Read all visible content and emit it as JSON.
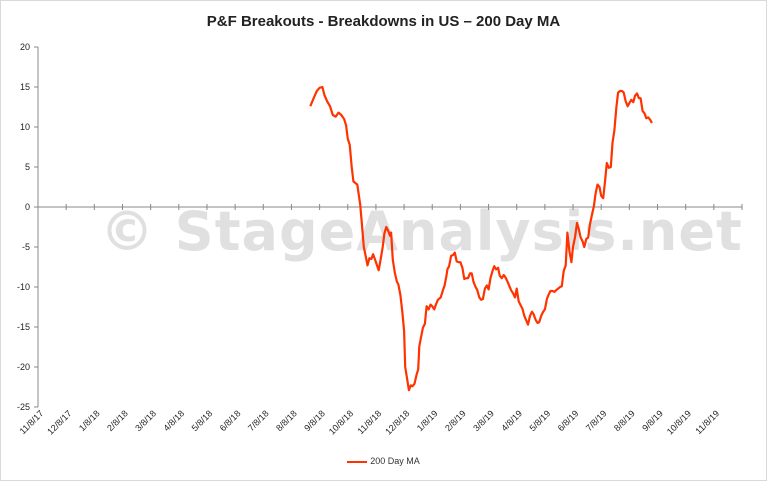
{
  "chart_data": {
    "type": "line",
    "title": "P&F Breakouts - Breakdowns in US – 200 Day MA",
    "watermark": "© StageAnalysis.net",
    "color": "#ff3300",
    "ylim": [
      -25,
      20
    ],
    "yticks": [
      20,
      15,
      10,
      5,
      0,
      -5,
      -10,
      -15,
      -20,
      -25
    ],
    "grid": false,
    "legend_position": "bottom",
    "x_tick_labels": [
      "11/8/17",
      "12/8/17",
      "1/8/18",
      "2/8/18",
      "3/8/18",
      "4/8/18",
      "5/8/18",
      "6/8/18",
      "7/8/18",
      "8/8/18",
      "9/8/18",
      "10/8/18",
      "11/8/18",
      "12/8/18",
      "1/8/19",
      "2/8/19",
      "3/8/19",
      "4/8/19",
      "5/8/19",
      "6/8/19",
      "7/8/19",
      "8/8/19",
      "9/8/19",
      "10/8/19",
      "11/8/19"
    ],
    "x_unit": "months since 11/8/17",
    "series": [
      {
        "name": "200 Day MA",
        "points": [
          [
            9.67,
            12.6
          ],
          [
            9.8,
            13.7
          ],
          [
            9.9,
            14.5
          ],
          [
            10.0,
            14.9
          ],
          [
            10.1,
            15.0
          ],
          [
            10.17,
            14.0
          ],
          [
            10.27,
            13.2
          ],
          [
            10.37,
            12.6
          ],
          [
            10.47,
            11.5
          ],
          [
            10.57,
            11.3
          ],
          [
            10.67,
            11.8
          ],
          [
            10.77,
            11.5
          ],
          [
            10.87,
            11.0
          ],
          [
            10.94,
            10.2
          ],
          [
            11.0,
            8.5
          ],
          [
            11.07,
            7.8
          ],
          [
            11.14,
            5.0
          ],
          [
            11.2,
            3.2
          ],
          [
            11.34,
            2.8
          ],
          [
            11.44,
            0.3
          ],
          [
            11.5,
            -2.0
          ],
          [
            11.57,
            -5.0
          ],
          [
            11.64,
            -6.2
          ],
          [
            11.7,
            -7.3
          ],
          [
            11.77,
            -6.4
          ],
          [
            11.84,
            -6.5
          ],
          [
            11.9,
            -5.9
          ],
          [
            11.97,
            -6.6
          ],
          [
            12.04,
            -7.3
          ],
          [
            12.1,
            -7.9
          ],
          [
            12.17,
            -6.5
          ],
          [
            12.24,
            -5.0
          ],
          [
            12.3,
            -3.3
          ],
          [
            12.37,
            -2.5
          ],
          [
            12.44,
            -3.0
          ],
          [
            12.5,
            -3.6
          ],
          [
            12.54,
            -3.2
          ],
          [
            12.6,
            -6.6
          ],
          [
            12.67,
            -8.2
          ],
          [
            12.74,
            -9.3
          ],
          [
            12.8,
            -9.7
          ],
          [
            12.87,
            -11.0
          ],
          [
            12.94,
            -13.2
          ],
          [
            13.0,
            -15.5
          ],
          [
            13.04,
            -20.0
          ],
          [
            13.1,
            -21.3
          ],
          [
            13.17,
            -22.9
          ],
          [
            13.24,
            -22.3
          ],
          [
            13.3,
            -22.4
          ],
          [
            13.37,
            -22.1
          ],
          [
            13.44,
            -21.0
          ],
          [
            13.5,
            -20.3
          ],
          [
            13.54,
            -17.4
          ],
          [
            13.6,
            -16.3
          ],
          [
            13.67,
            -15.1
          ],
          [
            13.74,
            -14.6
          ],
          [
            13.8,
            -12.4
          ],
          [
            13.87,
            -12.8
          ],
          [
            13.94,
            -12.2
          ],
          [
            14.0,
            -12.4
          ],
          [
            14.07,
            -12.8
          ],
          [
            14.14,
            -12.1
          ],
          [
            14.2,
            -11.6
          ],
          [
            14.3,
            -11.3
          ],
          [
            14.37,
            -10.5
          ],
          [
            14.44,
            -9.8
          ],
          [
            14.5,
            -8.7
          ],
          [
            14.54,
            -7.8
          ],
          [
            14.6,
            -7.4
          ],
          [
            14.67,
            -6.1
          ],
          [
            14.74,
            -6.0
          ],
          [
            14.8,
            -5.7
          ],
          [
            14.87,
            -6.8
          ],
          [
            14.94,
            -6.9
          ],
          [
            15.0,
            -6.9
          ],
          [
            15.07,
            -7.6
          ],
          [
            15.14,
            -9.0
          ],
          [
            15.2,
            -8.9
          ],
          [
            15.27,
            -8.9
          ],
          [
            15.34,
            -8.3
          ],
          [
            15.4,
            -8.3
          ],
          [
            15.47,
            -9.4
          ],
          [
            15.54,
            -10.0
          ],
          [
            15.6,
            -10.4
          ],
          [
            15.67,
            -11.3
          ],
          [
            15.74,
            -11.6
          ],
          [
            15.8,
            -11.5
          ],
          [
            15.87,
            -10.2
          ],
          [
            15.94,
            -9.8
          ],
          [
            16.0,
            -10.3
          ],
          [
            16.07,
            -8.9
          ],
          [
            16.14,
            -8.0
          ],
          [
            16.2,
            -7.4
          ],
          [
            16.27,
            -7.8
          ],
          [
            16.34,
            -7.6
          ],
          [
            16.4,
            -8.6
          ],
          [
            16.47,
            -8.9
          ],
          [
            16.54,
            -8.5
          ],
          [
            16.6,
            -8.8
          ],
          [
            16.67,
            -9.3
          ],
          [
            16.74,
            -9.9
          ],
          [
            16.8,
            -10.4
          ],
          [
            16.87,
            -10.8
          ],
          [
            16.94,
            -11.3
          ],
          [
            17.0,
            -10.2
          ],
          [
            17.07,
            -11.8
          ],
          [
            17.14,
            -12.3
          ],
          [
            17.2,
            -12.7
          ],
          [
            17.27,
            -13.6
          ],
          [
            17.34,
            -14.2
          ],
          [
            17.4,
            -14.7
          ],
          [
            17.47,
            -13.6
          ],
          [
            17.54,
            -13.1
          ],
          [
            17.6,
            -13.4
          ],
          [
            17.67,
            -14.1
          ],
          [
            17.74,
            -14.5
          ],
          [
            17.8,
            -14.4
          ],
          [
            17.87,
            -13.6
          ],
          [
            17.94,
            -13.1
          ],
          [
            18.0,
            -12.8
          ],
          [
            18.07,
            -11.5
          ],
          [
            18.14,
            -10.9
          ],
          [
            18.2,
            -10.5
          ],
          [
            18.27,
            -10.5
          ],
          [
            18.34,
            -10.6
          ],
          [
            18.4,
            -10.4
          ],
          [
            18.47,
            -10.2
          ],
          [
            18.54,
            -10.0
          ],
          [
            18.6,
            -9.9
          ],
          [
            18.67,
            -8.0
          ],
          [
            18.74,
            -7.3
          ],
          [
            18.8,
            -3.2
          ],
          [
            18.87,
            -5.5
          ],
          [
            18.94,
            -6.9
          ],
          [
            19.0,
            -5.0
          ],
          [
            19.07,
            -3.8
          ],
          [
            19.14,
            -2.0
          ],
          [
            19.2,
            -2.7
          ],
          [
            19.27,
            -3.8
          ],
          [
            19.34,
            -4.3
          ],
          [
            19.4,
            -5.0
          ],
          [
            19.47,
            -4.0
          ],
          [
            19.54,
            -3.8
          ],
          [
            19.6,
            -2.2
          ],
          [
            19.67,
            -1.0
          ],
          [
            19.74,
            0.1
          ],
          [
            19.8,
            1.7
          ],
          [
            19.87,
            2.8
          ],
          [
            19.94,
            2.5
          ],
          [
            20.0,
            1.4
          ],
          [
            20.07,
            1.1
          ],
          [
            20.14,
            3.3
          ],
          [
            20.2,
            5.5
          ],
          [
            20.27,
            4.9
          ],
          [
            20.34,
            5.0
          ],
          [
            20.4,
            8.0
          ],
          [
            20.47,
            9.6
          ],
          [
            20.54,
            12.5
          ],
          [
            20.6,
            14.3
          ],
          [
            20.67,
            14.5
          ],
          [
            20.74,
            14.5
          ],
          [
            20.8,
            14.3
          ],
          [
            20.87,
            13.2
          ],
          [
            20.94,
            12.6
          ],
          [
            21.0,
            13.0
          ],
          [
            21.07,
            13.4
          ],
          [
            21.14,
            13.1
          ],
          [
            21.2,
            13.9
          ],
          [
            21.27,
            14.2
          ],
          [
            21.34,
            13.6
          ],
          [
            21.4,
            13.6
          ],
          [
            21.47,
            12.0
          ],
          [
            21.54,
            11.7
          ],
          [
            21.6,
            11.1
          ],
          [
            21.67,
            11.2
          ],
          [
            21.74,
            10.9
          ],
          [
            21.8,
            10.5
          ]
        ]
      }
    ]
  }
}
